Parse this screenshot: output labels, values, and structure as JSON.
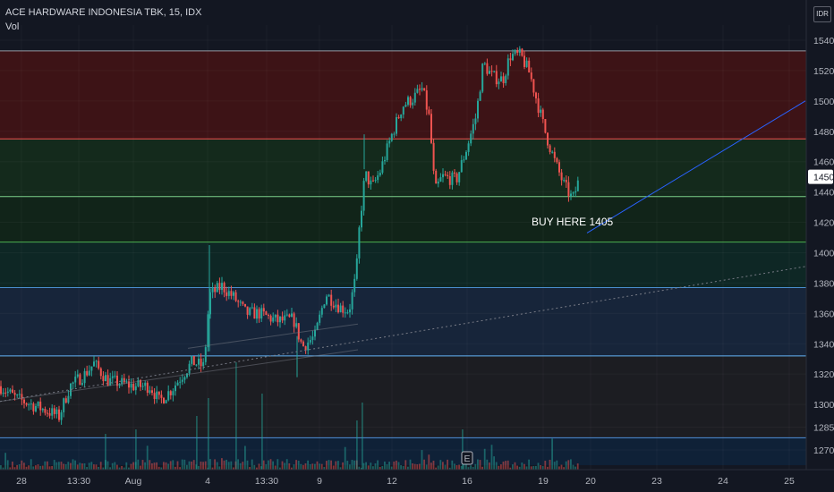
{
  "header": {
    "symbol": "ACE HARDWARE INDONESIA TBK, 15, IDX",
    "volume_label": "Vol",
    "currency": "IDR"
  },
  "colors": {
    "background": "#131722",
    "up": "#26a69a",
    "down": "#ef5350",
    "trendline": "#2962ff",
    "dotted_line": "#787b86",
    "price_badge": "#ffffff"
  },
  "chart_data": {
    "type": "candlestick",
    "ylim": [
      1260,
      1550
    ],
    "y_ticks": [
      1540,
      1520,
      1500,
      1480,
      1460,
      1440,
      1420,
      1400,
      1380,
      1360,
      1340,
      1320,
      1300,
      1285,
      1270
    ],
    "x_ticks": [
      "28",
      "13:30",
      "Aug",
      "4",
      "13:30",
      "9",
      "12",
      "16",
      "19",
      "20",
      "23",
      "24",
      "25"
    ],
    "current_price": "1450",
    "zones": [
      {
        "from": 1475,
        "to": 1533,
        "color": "#3d1316"
      },
      {
        "from": 1437,
        "to": 1475,
        "color": "#142a1c"
      },
      {
        "from": 1407,
        "to": 1437,
        "color": "#112419"
      },
      {
        "from": 1377,
        "to": 1407,
        "color": "#0e2725"
      },
      {
        "from": 1332,
        "to": 1377,
        "color": "#17253a"
      },
      {
        "from": 1278,
        "to": 1332,
        "color": "#1c1d22"
      },
      {
        "from": 1260,
        "to": 1278,
        "color": "#0f2137"
      }
    ],
    "levels": [
      {
        "price": 1533,
        "color": "#9598a1"
      },
      {
        "price": 1475,
        "color": "#ef5350"
      },
      {
        "price": 1437,
        "color": "#7bd08a"
      },
      {
        "price": 1407,
        "color": "#4caf50"
      },
      {
        "price": 1377,
        "color": "#4a8fd0"
      },
      {
        "price": 1332,
        "color": "#64b5f6"
      },
      {
        "price": 1278,
        "color": "#4f8fd9"
      }
    ],
    "trend_segments": [
      {
        "x0": 0,
        "y0": 1302,
        "x1": 400,
        "y1": 1336
      },
      {
        "x0": 210,
        "y0": 1337,
        "x1": 400,
        "y1": 1353
      }
    ],
    "candle_path": [
      [
        0,
        1312
      ],
      [
        18,
        1304
      ],
      [
        35,
        1300
      ],
      [
        52,
        1296
      ],
      [
        66,
        1292
      ],
      [
        78,
        1312
      ],
      [
        95,
        1320
      ],
      [
        105,
        1327
      ],
      [
        120,
        1316
      ],
      [
        135,
        1314
      ],
      [
        150,
        1312
      ],
      [
        168,
        1312
      ],
      [
        178,
        1302
      ],
      [
        192,
        1310
      ],
      [
        202,
        1318
      ],
      [
        215,
        1328
      ],
      [
        228,
        1325
      ],
      [
        234,
        1372
      ],
      [
        248,
        1378
      ],
      [
        262,
        1370
      ],
      [
        275,
        1360
      ],
      [
        290,
        1360
      ],
      [
        310,
        1355
      ],
      [
        328,
        1356
      ],
      [
        338,
        1338
      ],
      [
        352,
        1345
      ],
      [
        364,
        1373
      ],
      [
        380,
        1364
      ],
      [
        390,
        1362
      ],
      [
        398,
        1385
      ],
      [
        402,
        1420
      ],
      [
        408,
        1452
      ],
      [
        416,
        1443
      ],
      [
        425,
        1454
      ],
      [
        438,
        1478
      ],
      [
        450,
        1497
      ],
      [
        462,
        1502
      ],
      [
        472,
        1508
      ],
      [
        480,
        1488
      ],
      [
        486,
        1440
      ],
      [
        494,
        1450
      ],
      [
        510,
        1448
      ],
      [
        520,
        1466
      ],
      [
        532,
        1490
      ],
      [
        540,
        1525
      ],
      [
        550,
        1516
      ],
      [
        562,
        1514
      ],
      [
        570,
        1530
      ],
      [
        582,
        1530
      ],
      [
        592,
        1518
      ],
      [
        600,
        1500
      ],
      [
        610,
        1478
      ],
      [
        620,
        1460
      ],
      [
        630,
        1445
      ],
      [
        640,
        1435
      ],
      [
        648,
        1450
      ]
    ],
    "labeled_marks": [
      {
        "x": 522,
        "label": "E"
      }
    ],
    "annotation": {
      "text": "BUY HERE 1405",
      "line": {
        "x0": 656,
        "y0": 1413,
        "x1": 900,
        "y1": 1500
      }
    }
  }
}
